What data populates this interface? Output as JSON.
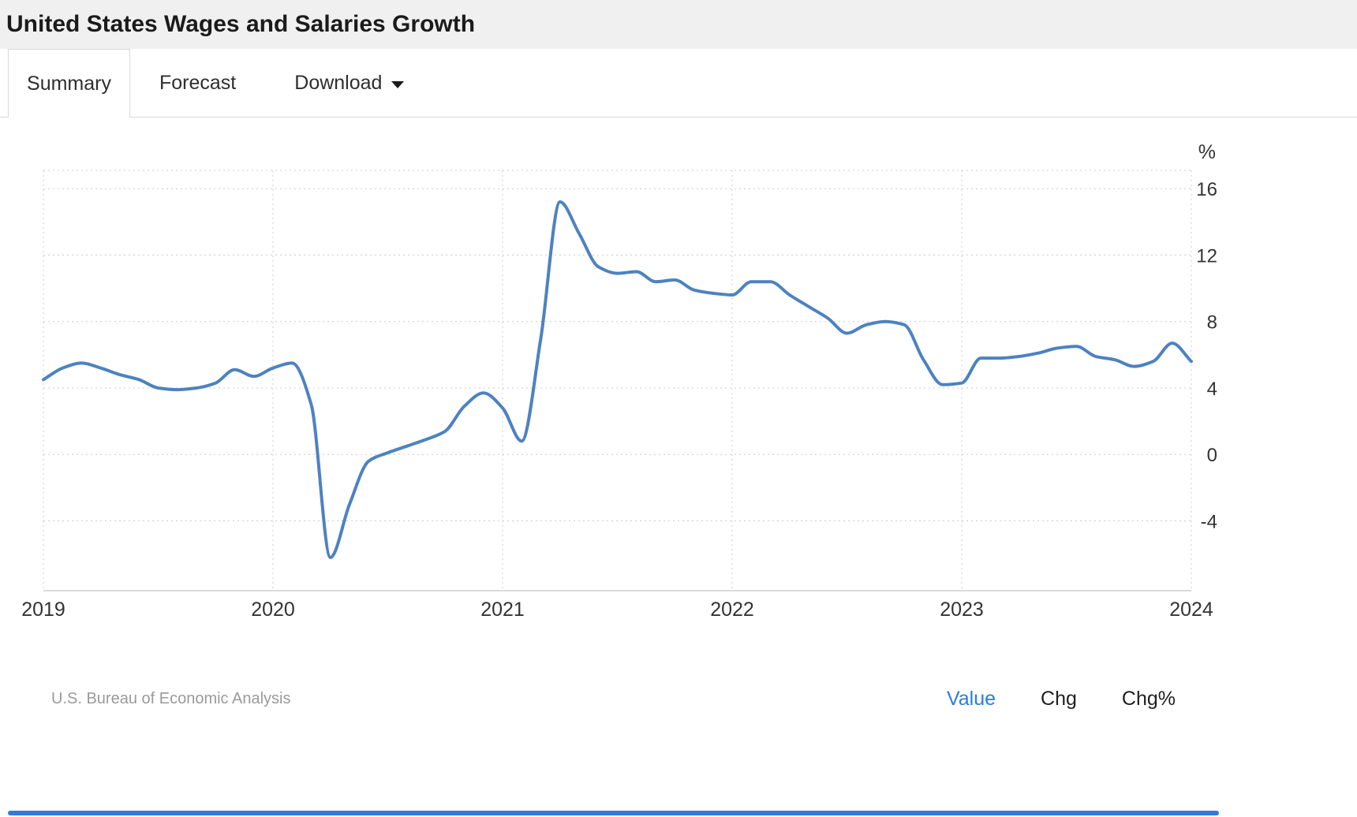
{
  "header": {
    "title": "United States Wages and Salaries Growth"
  },
  "tabs": [
    {
      "label": "Summary",
      "active": true
    },
    {
      "label": "Forecast",
      "active": false
    },
    {
      "label": "Download",
      "active": false,
      "has_caret": true
    }
  ],
  "icons": {
    "chevron-down-icon": "▾"
  },
  "footer": {
    "source": "U.S. Bureau of Economic Analysis",
    "legend": [
      {
        "label": "Value",
        "active": true
      },
      {
        "label": "Chg",
        "active": false
      },
      {
        "label": "Chg%",
        "active": false
      }
    ]
  },
  "colors": {
    "header_bg": "#f0f0f0",
    "line": "#4d82c0",
    "accent": "#2b7cdf",
    "scrollbar": "#3579d8",
    "grid": "#cccccc",
    "axis": "#b5b5b5",
    "tick_text": "#333333"
  },
  "chart_data": {
    "type": "line",
    "title": "United States Wages and Salaries Growth",
    "xlabel": "",
    "ylabel": "%",
    "frequency": "monthly",
    "x_start": "2019-01",
    "x_end": "2024-01",
    "x_tick_labels": [
      "2019",
      "2020",
      "2021",
      "2022",
      "2023",
      "2024"
    ],
    "yticks": [
      16,
      12,
      8,
      4,
      0,
      -4
    ],
    "ylim": [
      -8.2,
      17.1
    ],
    "grid": "dotted",
    "legend_position": "none",
    "series": [
      {
        "name": "Value",
        "units": "percent YoY",
        "values": [
          4.5,
          5.2,
          5.5,
          5.2,
          4.8,
          4.5,
          4.0,
          3.9,
          4.0,
          4.3,
          5.1,
          4.7,
          5.2,
          5.5,
          3.0,
          -6.2,
          -3.0,
          -0.4,
          0.1,
          0.5,
          0.9,
          1.4,
          2.9,
          3.7,
          2.8,
          0.8,
          7.0,
          15.2,
          13.3,
          11.3,
          10.9,
          11.0,
          10.4,
          10.5,
          9.9,
          9.7,
          9.6,
          10.4,
          10.4,
          9.6,
          8.9,
          8.2,
          7.3,
          7.8,
          8.0,
          7.8,
          5.7,
          4.2,
          4.3,
          5.8,
          5.8,
          5.9,
          6.1,
          6.4,
          6.5,
          5.9,
          5.7,
          5.3,
          5.6,
          6.7,
          5.6
        ]
      }
    ]
  }
}
